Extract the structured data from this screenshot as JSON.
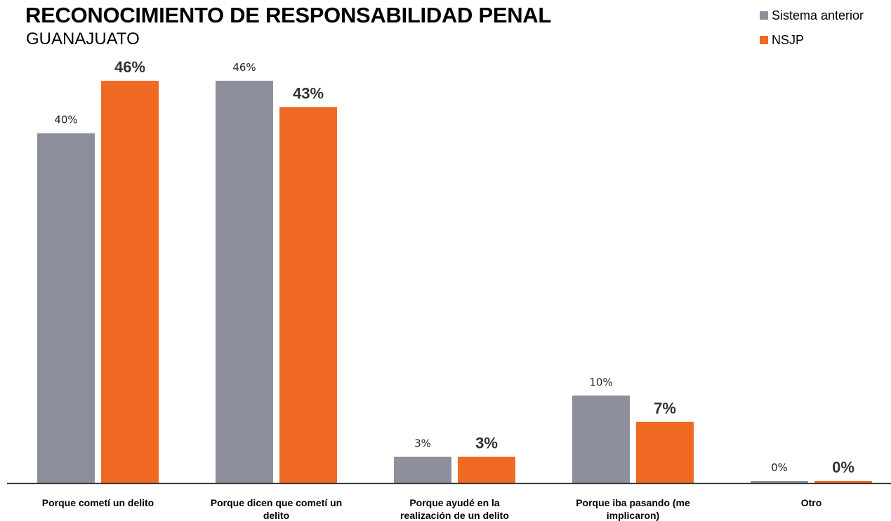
{
  "chart_data": {
    "type": "bar",
    "title": "RECONOCIMIENTO DE RESPONSABILIDAD PENAL",
    "subtitle": "GUANAJUATO",
    "categories": [
      [
        "Porque cometí un delito"
      ],
      [
        "Porque dicen que cometí un",
        "delito"
      ],
      [
        "Porque ayudé en la",
        "realización de un delito"
      ],
      [
        "Porque iba pasando (me",
        "implicaron)"
      ],
      [
        "Otro"
      ]
    ],
    "series": [
      {
        "name": "Sistema anterior",
        "color": "#8d909c",
        "values": [
          40,
          46,
          3,
          10,
          0
        ],
        "labels": [
          "40%",
          "46%",
          "3%",
          "10%",
          "0%"
        ]
      },
      {
        "name": "NSJP",
        "color": "#f06a23",
        "values": [
          46,
          43,
          3,
          7,
          0
        ],
        "labels": [
          "46%",
          "43%",
          "3%",
          "7%",
          "0%"
        ]
      }
    ],
    "ylim": [
      0,
      46
    ],
    "legend_position": "top-right",
    "grid": false
  }
}
